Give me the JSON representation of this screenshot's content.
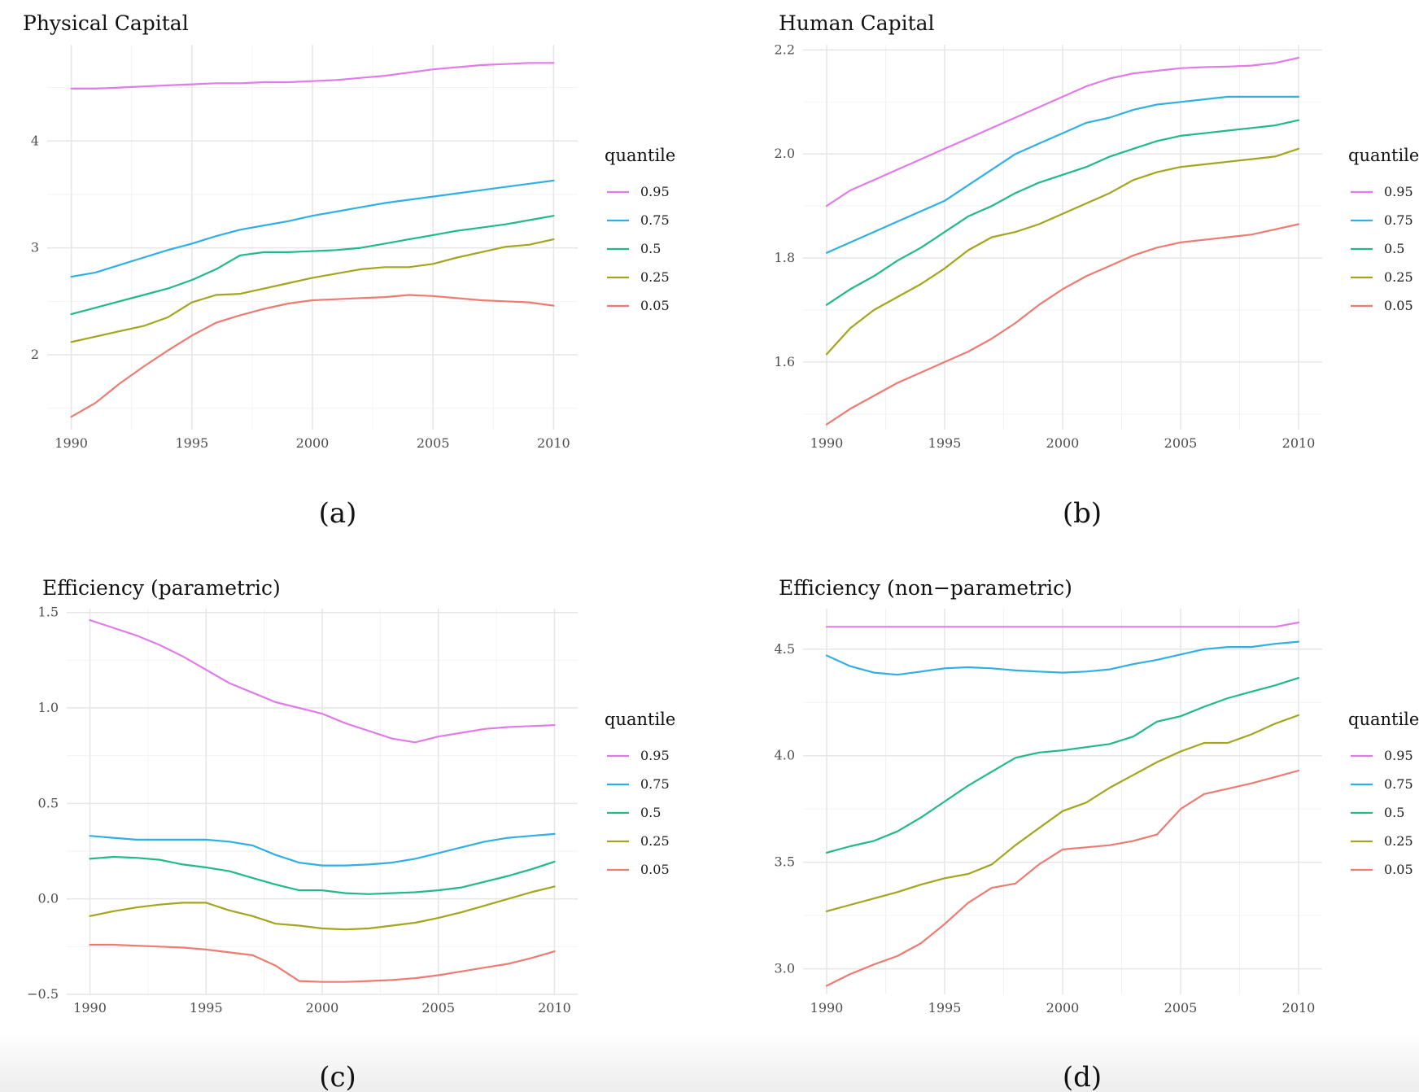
{
  "chart_data": [
    {
      "type": "line",
      "title": "Physical Capital",
      "caption": "(a)",
      "legend_title": "quantile",
      "legend_position": "right",
      "xlim": [
        1990,
        2010
      ],
      "ylim": [
        1.3,
        4.9
      ],
      "x_ticks": [
        1990,
        1995,
        2000,
        2005,
        2010
      ],
      "y_ticks": [
        2,
        3,
        4
      ],
      "y_tick_labels": [
        "2",
        "3",
        "4"
      ],
      "grid": true,
      "x": [
        1990,
        1991,
        1992,
        1993,
        1994,
        1995,
        1996,
        1997,
        1998,
        1999,
        2000,
        2001,
        2002,
        2003,
        2004,
        2005,
        2006,
        2007,
        2008,
        2009,
        2010
      ],
      "series": [
        {
          "name": "0.95",
          "color": "#E07BEA",
          "values": [
            4.49,
            4.49,
            4.5,
            4.51,
            4.52,
            4.53,
            4.54,
            4.54,
            4.55,
            4.55,
            4.56,
            4.57,
            4.59,
            4.61,
            4.64,
            4.67,
            4.69,
            4.71,
            4.72,
            4.73,
            4.73
          ]
        },
        {
          "name": "0.75",
          "color": "#2FB0E4",
          "values": [
            2.73,
            2.77,
            2.84,
            2.91,
            2.98,
            3.04,
            3.11,
            3.17,
            3.21,
            3.25,
            3.3,
            3.34,
            3.38,
            3.42,
            3.45,
            3.48,
            3.51,
            3.54,
            3.57,
            3.6,
            3.63
          ]
        },
        {
          "name": "0.5",
          "color": "#20BA8A",
          "values": [
            2.38,
            2.44,
            2.5,
            2.56,
            2.62,
            2.7,
            2.8,
            2.93,
            2.96,
            2.96,
            2.97,
            2.98,
            3.0,
            3.04,
            3.08,
            3.12,
            3.16,
            3.19,
            3.22,
            3.26,
            3.3
          ]
        },
        {
          "name": "0.25",
          "color": "#A3A51C",
          "values": [
            2.12,
            2.17,
            2.22,
            2.27,
            2.35,
            2.49,
            2.56,
            2.57,
            2.62,
            2.67,
            2.72,
            2.76,
            2.8,
            2.82,
            2.82,
            2.85,
            2.91,
            2.96,
            3.01,
            3.03,
            3.08
          ]
        },
        {
          "name": "0.05",
          "color": "#EE7B72",
          "values": [
            1.42,
            1.55,
            1.73,
            1.89,
            2.04,
            2.18,
            2.3,
            2.37,
            2.43,
            2.48,
            2.51,
            2.52,
            2.53,
            2.54,
            2.56,
            2.55,
            2.53,
            2.51,
            2.5,
            2.49,
            2.46
          ]
        }
      ]
    },
    {
      "type": "line",
      "title": "Human Capital",
      "caption": "(b)",
      "legend_title": "quantile",
      "legend_position": "right",
      "xlim": [
        1990,
        2010
      ],
      "ylim": [
        1.47,
        2.21
      ],
      "x_ticks": [
        1990,
        1995,
        2000,
        2005,
        2010
      ],
      "y_ticks": [
        1.6,
        1.8,
        2.0,
        2.2
      ],
      "y_tick_labels": [
        "1.6",
        "1.8",
        "2.0",
        "2.2"
      ],
      "grid": true,
      "x": [
        1990,
        1991,
        1992,
        1993,
        1994,
        1995,
        1996,
        1997,
        1998,
        1999,
        2000,
        2001,
        2002,
        2003,
        2004,
        2005,
        2006,
        2007,
        2008,
        2009,
        2010
      ],
      "series": [
        {
          "name": "0.95",
          "color": "#E07BEA",
          "values": [
            1.9,
            1.93,
            1.95,
            1.97,
            1.99,
            2.01,
            2.03,
            2.05,
            2.07,
            2.09,
            2.11,
            2.13,
            2.145,
            2.155,
            2.16,
            2.165,
            2.167,
            2.168,
            2.17,
            2.175,
            2.185
          ]
        },
        {
          "name": "0.75",
          "color": "#2FB0E4",
          "values": [
            1.81,
            1.83,
            1.85,
            1.87,
            1.89,
            1.91,
            1.94,
            1.97,
            2.0,
            2.02,
            2.04,
            2.06,
            2.07,
            2.085,
            2.095,
            2.1,
            2.105,
            2.11,
            2.11,
            2.11,
            2.11
          ]
        },
        {
          "name": "0.5",
          "color": "#20BA8A",
          "values": [
            1.71,
            1.74,
            1.765,
            1.795,
            1.82,
            1.85,
            1.88,
            1.9,
            1.925,
            1.945,
            1.96,
            1.975,
            1.995,
            2.01,
            2.025,
            2.035,
            2.04,
            2.045,
            2.05,
            2.055,
            2.065
          ]
        },
        {
          "name": "0.25",
          "color": "#A3A51C",
          "values": [
            1.615,
            1.665,
            1.7,
            1.725,
            1.75,
            1.78,
            1.815,
            1.84,
            1.85,
            1.865,
            1.885,
            1.905,
            1.925,
            1.95,
            1.965,
            1.975,
            1.98,
            1.985,
            1.99,
            1.995,
            2.01
          ]
        },
        {
          "name": "0.05",
          "color": "#EE7B72",
          "values": [
            1.48,
            1.51,
            1.535,
            1.56,
            1.58,
            1.6,
            1.62,
            1.645,
            1.675,
            1.71,
            1.74,
            1.765,
            1.785,
            1.805,
            1.82,
            1.83,
            1.835,
            1.84,
            1.845,
            1.855,
            1.865
          ]
        }
      ]
    },
    {
      "type": "line",
      "title": "Efficiency (parametric)",
      "caption": "(c)",
      "legend_title": "quantile",
      "legend_position": "right",
      "xlim": [
        1990,
        2010
      ],
      "ylim": [
        -0.5,
        1.52
      ],
      "x_ticks": [
        1990,
        1995,
        2000,
        2005,
        2010
      ],
      "y_ticks": [
        -0.5,
        0.0,
        0.5,
        1.0,
        1.5
      ],
      "y_tick_labels": [
        "−0.5",
        "0.0",
        "0.5",
        "1.0",
        "1.5"
      ],
      "grid": true,
      "x": [
        1990,
        1991,
        1992,
        1993,
        1994,
        1995,
        1996,
        1997,
        1998,
        1999,
        2000,
        2001,
        2002,
        2003,
        2004,
        2005,
        2006,
        2007,
        2008,
        2009,
        2010
      ],
      "series": [
        {
          "name": "0.95",
          "color": "#E07BEA",
          "values": [
            1.46,
            1.42,
            1.38,
            1.33,
            1.27,
            1.2,
            1.13,
            1.08,
            1.03,
            1.0,
            0.97,
            0.92,
            0.88,
            0.84,
            0.82,
            0.85,
            0.87,
            0.89,
            0.9,
            0.905,
            0.91
          ]
        },
        {
          "name": "0.75",
          "color": "#2FB0E4",
          "values": [
            0.33,
            0.32,
            0.31,
            0.31,
            0.31,
            0.31,
            0.3,
            0.28,
            0.23,
            0.19,
            0.175,
            0.175,
            0.18,
            0.19,
            0.21,
            0.24,
            0.27,
            0.3,
            0.32,
            0.33,
            0.34
          ]
        },
        {
          "name": "0.5",
          "color": "#20BA8A",
          "values": [
            0.21,
            0.22,
            0.215,
            0.205,
            0.18,
            0.165,
            0.145,
            0.11,
            0.075,
            0.045,
            0.045,
            0.03,
            0.025,
            0.03,
            0.035,
            0.045,
            0.06,
            0.09,
            0.12,
            0.155,
            0.195
          ]
        },
        {
          "name": "0.25",
          "color": "#A3A51C",
          "values": [
            -0.09,
            -0.065,
            -0.045,
            -0.03,
            -0.02,
            -0.02,
            -0.06,
            -0.09,
            -0.13,
            -0.14,
            -0.155,
            -0.16,
            -0.155,
            -0.14,
            -0.125,
            -0.1,
            -0.07,
            -0.035,
            0.0,
            0.035,
            0.065
          ]
        },
        {
          "name": "0.05",
          "color": "#EE7B72",
          "values": [
            -0.24,
            -0.24,
            -0.245,
            -0.25,
            -0.255,
            -0.265,
            -0.28,
            -0.295,
            -0.35,
            -0.43,
            -0.435,
            -0.435,
            -0.43,
            -0.425,
            -0.415,
            -0.4,
            -0.38,
            -0.36,
            -0.34,
            -0.31,
            -0.275
          ]
        }
      ]
    },
    {
      "type": "line",
      "title": "Efficiency (non−parametric)",
      "caption": "(d)",
      "legend_title": "quantile",
      "legend_position": "right",
      "xlim": [
        1990,
        2010
      ],
      "ylim": [
        2.88,
        4.69
      ],
      "x_ticks": [
        1990,
        1995,
        2000,
        2005,
        2010
      ],
      "y_ticks": [
        3.0,
        3.5,
        4.0,
        4.5
      ],
      "y_tick_labels": [
        "3.0",
        "3.5",
        "4.0",
        "4.5"
      ],
      "grid": true,
      "x": [
        1990,
        1991,
        1992,
        1993,
        1994,
        1995,
        1996,
        1997,
        1998,
        1999,
        2000,
        2001,
        2002,
        2003,
        2004,
        2005,
        2006,
        2007,
        2008,
        2009,
        2010
      ],
      "series": [
        {
          "name": "0.95",
          "color": "#E07BEA",
          "values": [
            4.605,
            4.605,
            4.605,
            4.605,
            4.605,
            4.605,
            4.605,
            4.605,
            4.605,
            4.605,
            4.605,
            4.605,
            4.605,
            4.605,
            4.605,
            4.605,
            4.605,
            4.605,
            4.605,
            4.605,
            4.625
          ]
        },
        {
          "name": "0.75",
          "color": "#2FB0E4",
          "values": [
            4.47,
            4.42,
            4.39,
            4.38,
            4.395,
            4.41,
            4.415,
            4.41,
            4.4,
            4.395,
            4.39,
            4.395,
            4.405,
            4.43,
            4.45,
            4.475,
            4.5,
            4.51,
            4.51,
            4.525,
            4.535
          ]
        },
        {
          "name": "0.5",
          "color": "#20BA8A",
          "values": [
            3.545,
            3.575,
            3.6,
            3.645,
            3.71,
            3.785,
            3.86,
            3.925,
            3.99,
            4.015,
            4.025,
            4.04,
            4.055,
            4.09,
            4.16,
            4.185,
            4.23,
            4.27,
            4.3,
            4.33,
            4.365
          ]
        },
        {
          "name": "0.25",
          "color": "#A3A51C",
          "values": [
            3.27,
            3.3,
            3.33,
            3.36,
            3.395,
            3.425,
            3.445,
            3.49,
            3.58,
            3.66,
            3.74,
            3.78,
            3.85,
            3.91,
            3.97,
            4.02,
            4.06,
            4.06,
            4.1,
            4.15,
            4.19
          ]
        },
        {
          "name": "0.05",
          "color": "#EE7B72",
          "values": [
            2.92,
            2.975,
            3.02,
            3.06,
            3.12,
            3.21,
            3.31,
            3.38,
            3.4,
            3.49,
            3.56,
            3.57,
            3.58,
            3.6,
            3.63,
            3.75,
            3.82,
            3.845,
            3.87,
            3.9,
            3.93
          ]
        }
      ]
    }
  ]
}
